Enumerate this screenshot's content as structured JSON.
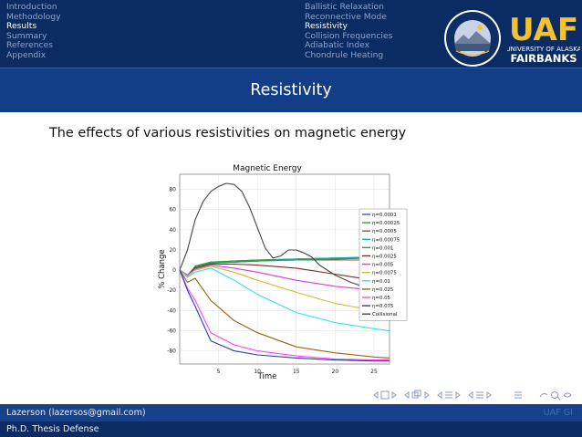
{
  "nav": {
    "sections_left": [
      "Introduction",
      "Methodology",
      "Results",
      "Summary",
      "References",
      "Appendix"
    ],
    "sections_right": [
      "Ballistic Relaxation",
      "Reconnective Mode",
      "Resistivity",
      "Collision Frequencies",
      "Adiabatic Index",
      "Chondrule Heating"
    ],
    "active_left": 2,
    "active_right": 2
  },
  "logos": {
    "seal_text": "GEOPHYSICAL INSTITUTE · University of Alaska Fairbanks",
    "uaf_letters": "UAF",
    "uaf_line1": "UNIVERSITY OF ALASKA",
    "uaf_line2": "FAIRBANKS"
  },
  "slide": {
    "title": "Resistivity",
    "subtitle": "The effects of various resistivities on magnetic energy"
  },
  "footer": {
    "author": "Lazerson (lazersos@gmail.com)",
    "institute": "UAF GI",
    "talk": "Ph.D. Thesis Defense"
  },
  "colors": {
    "header_dark": "#0b2c63",
    "header_band": "#133d86",
    "nav_inactive": "#8ea2c7",
    "uaf_yellow": "#f5c22e"
  },
  "chart_data": {
    "type": "line",
    "title": "Magnetic Energy",
    "xlabel": "Time",
    "ylabel": "% Change",
    "xlim": [
      0,
      27
    ],
    "ylim": [
      -93,
      95
    ],
    "xticks": [
      5,
      10,
      15,
      20,
      25
    ],
    "yticks": [
      80,
      60,
      40,
      20,
      0,
      -20,
      -40,
      -60,
      -80
    ],
    "grid": true,
    "legend_position": "right",
    "series": [
      {
        "name": "η=0.0001",
        "color": "#3a55d6",
        "x": [
          0,
          1,
          2,
          4,
          7,
          10,
          15,
          20,
          25,
          27
        ],
        "y": [
          0,
          -6,
          4,
          8,
          9,
          10,
          11,
          12,
          12,
          12
        ]
      },
      {
        "name": "η=0.00025",
        "color": "#2aa02a",
        "x": [
          0,
          1,
          2,
          4,
          7,
          10,
          15,
          20,
          25,
          27
        ],
        "y": [
          0,
          -6,
          4,
          8,
          9,
          10,
          11,
          12,
          13,
          13
        ]
      },
      {
        "name": "η=0.0005",
        "color": "#e03030",
        "x": [
          0,
          1,
          2,
          4,
          7,
          10,
          15,
          20,
          25,
          27
        ],
        "y": [
          0,
          -5,
          3,
          7,
          8,
          9,
          10,
          10,
          10,
          10
        ]
      },
      {
        "name": "η=0.00075",
        "color": "#00b8c8",
        "x": [
          0,
          1,
          2,
          4,
          7,
          10,
          15,
          20,
          25,
          27
        ],
        "y": [
          0,
          -5,
          3,
          7,
          8,
          9,
          11,
          12,
          13,
          14
        ]
      },
      {
        "name": "η=0.001",
        "color": "#2c9c3c",
        "x": [
          0,
          1,
          2,
          4,
          7,
          10,
          15,
          20,
          25,
          27
        ],
        "y": [
          0,
          -5,
          3,
          7,
          8,
          9,
          10,
          11,
          12,
          12
        ]
      },
      {
        "name": "η=0.0025",
        "color": "#7a2a2a",
        "x": [
          0,
          1,
          2,
          4,
          7,
          10,
          15,
          20,
          25,
          27
        ],
        "y": [
          0,
          -5,
          2,
          6,
          6,
          5,
          2,
          -4,
          -10,
          -12
        ]
      },
      {
        "name": "η=0.005",
        "color": "#e038e0",
        "x": [
          0,
          1,
          2,
          4,
          7,
          10,
          15,
          20,
          25,
          27
        ],
        "y": [
          0,
          -5,
          1,
          5,
          2,
          -2,
          -10,
          -16,
          -20,
          -21
        ]
      },
      {
        "name": "η=0.0075",
        "color": "#c8c030",
        "x": [
          0,
          1,
          2,
          4,
          7,
          10,
          15,
          20,
          25,
          27
        ],
        "y": [
          0,
          -6,
          0,
          4,
          -2,
          -10,
          -22,
          -33,
          -40,
          -42
        ]
      },
      {
        "name": "η=0.01",
        "color": "#30e0f0",
        "x": [
          0,
          1,
          2,
          4,
          7,
          10,
          15,
          20,
          25,
          27
        ],
        "y": [
          0,
          -7,
          -2,
          2,
          -10,
          -24,
          -42,
          -52,
          -58,
          -60
        ]
      },
      {
        "name": "η=0.025",
        "color": "#a06010",
        "x": [
          0,
          1,
          2,
          4,
          7,
          10,
          15,
          20,
          25,
          27
        ],
        "y": [
          0,
          -12,
          -8,
          -30,
          -50,
          -62,
          -76,
          -82,
          -86,
          -87
        ]
      },
      {
        "name": "η=0.05",
        "color": "#ff40ff",
        "x": [
          0,
          1,
          2,
          4,
          7,
          10,
          15,
          20,
          25,
          27
        ],
        "y": [
          0,
          -18,
          -30,
          -62,
          -74,
          -80,
          -85,
          -88,
          -89,
          -89
        ]
      },
      {
        "name": "η=0.075",
        "color": "#2a3aa8",
        "x": [
          0,
          1,
          2,
          4,
          7,
          10,
          15,
          20,
          25,
          27
        ],
        "y": [
          0,
          -20,
          -36,
          -70,
          -80,
          -84,
          -87,
          -89,
          -90,
          -90
        ]
      },
      {
        "name": "Collisional",
        "color": "#444444",
        "x": [
          0,
          1,
          2,
          3,
          4,
          5,
          6,
          7,
          8,
          9,
          10,
          11,
          12,
          13,
          14,
          15,
          16,
          17,
          18,
          20,
          22,
          25,
          27
        ],
        "y": [
          0,
          20,
          50,
          68,
          78,
          83,
          86,
          85,
          78,
          62,
          42,
          22,
          12,
          14,
          20,
          20,
          17,
          13,
          5,
          -5,
          -12,
          -20,
          -24
        ]
      }
    ]
  }
}
